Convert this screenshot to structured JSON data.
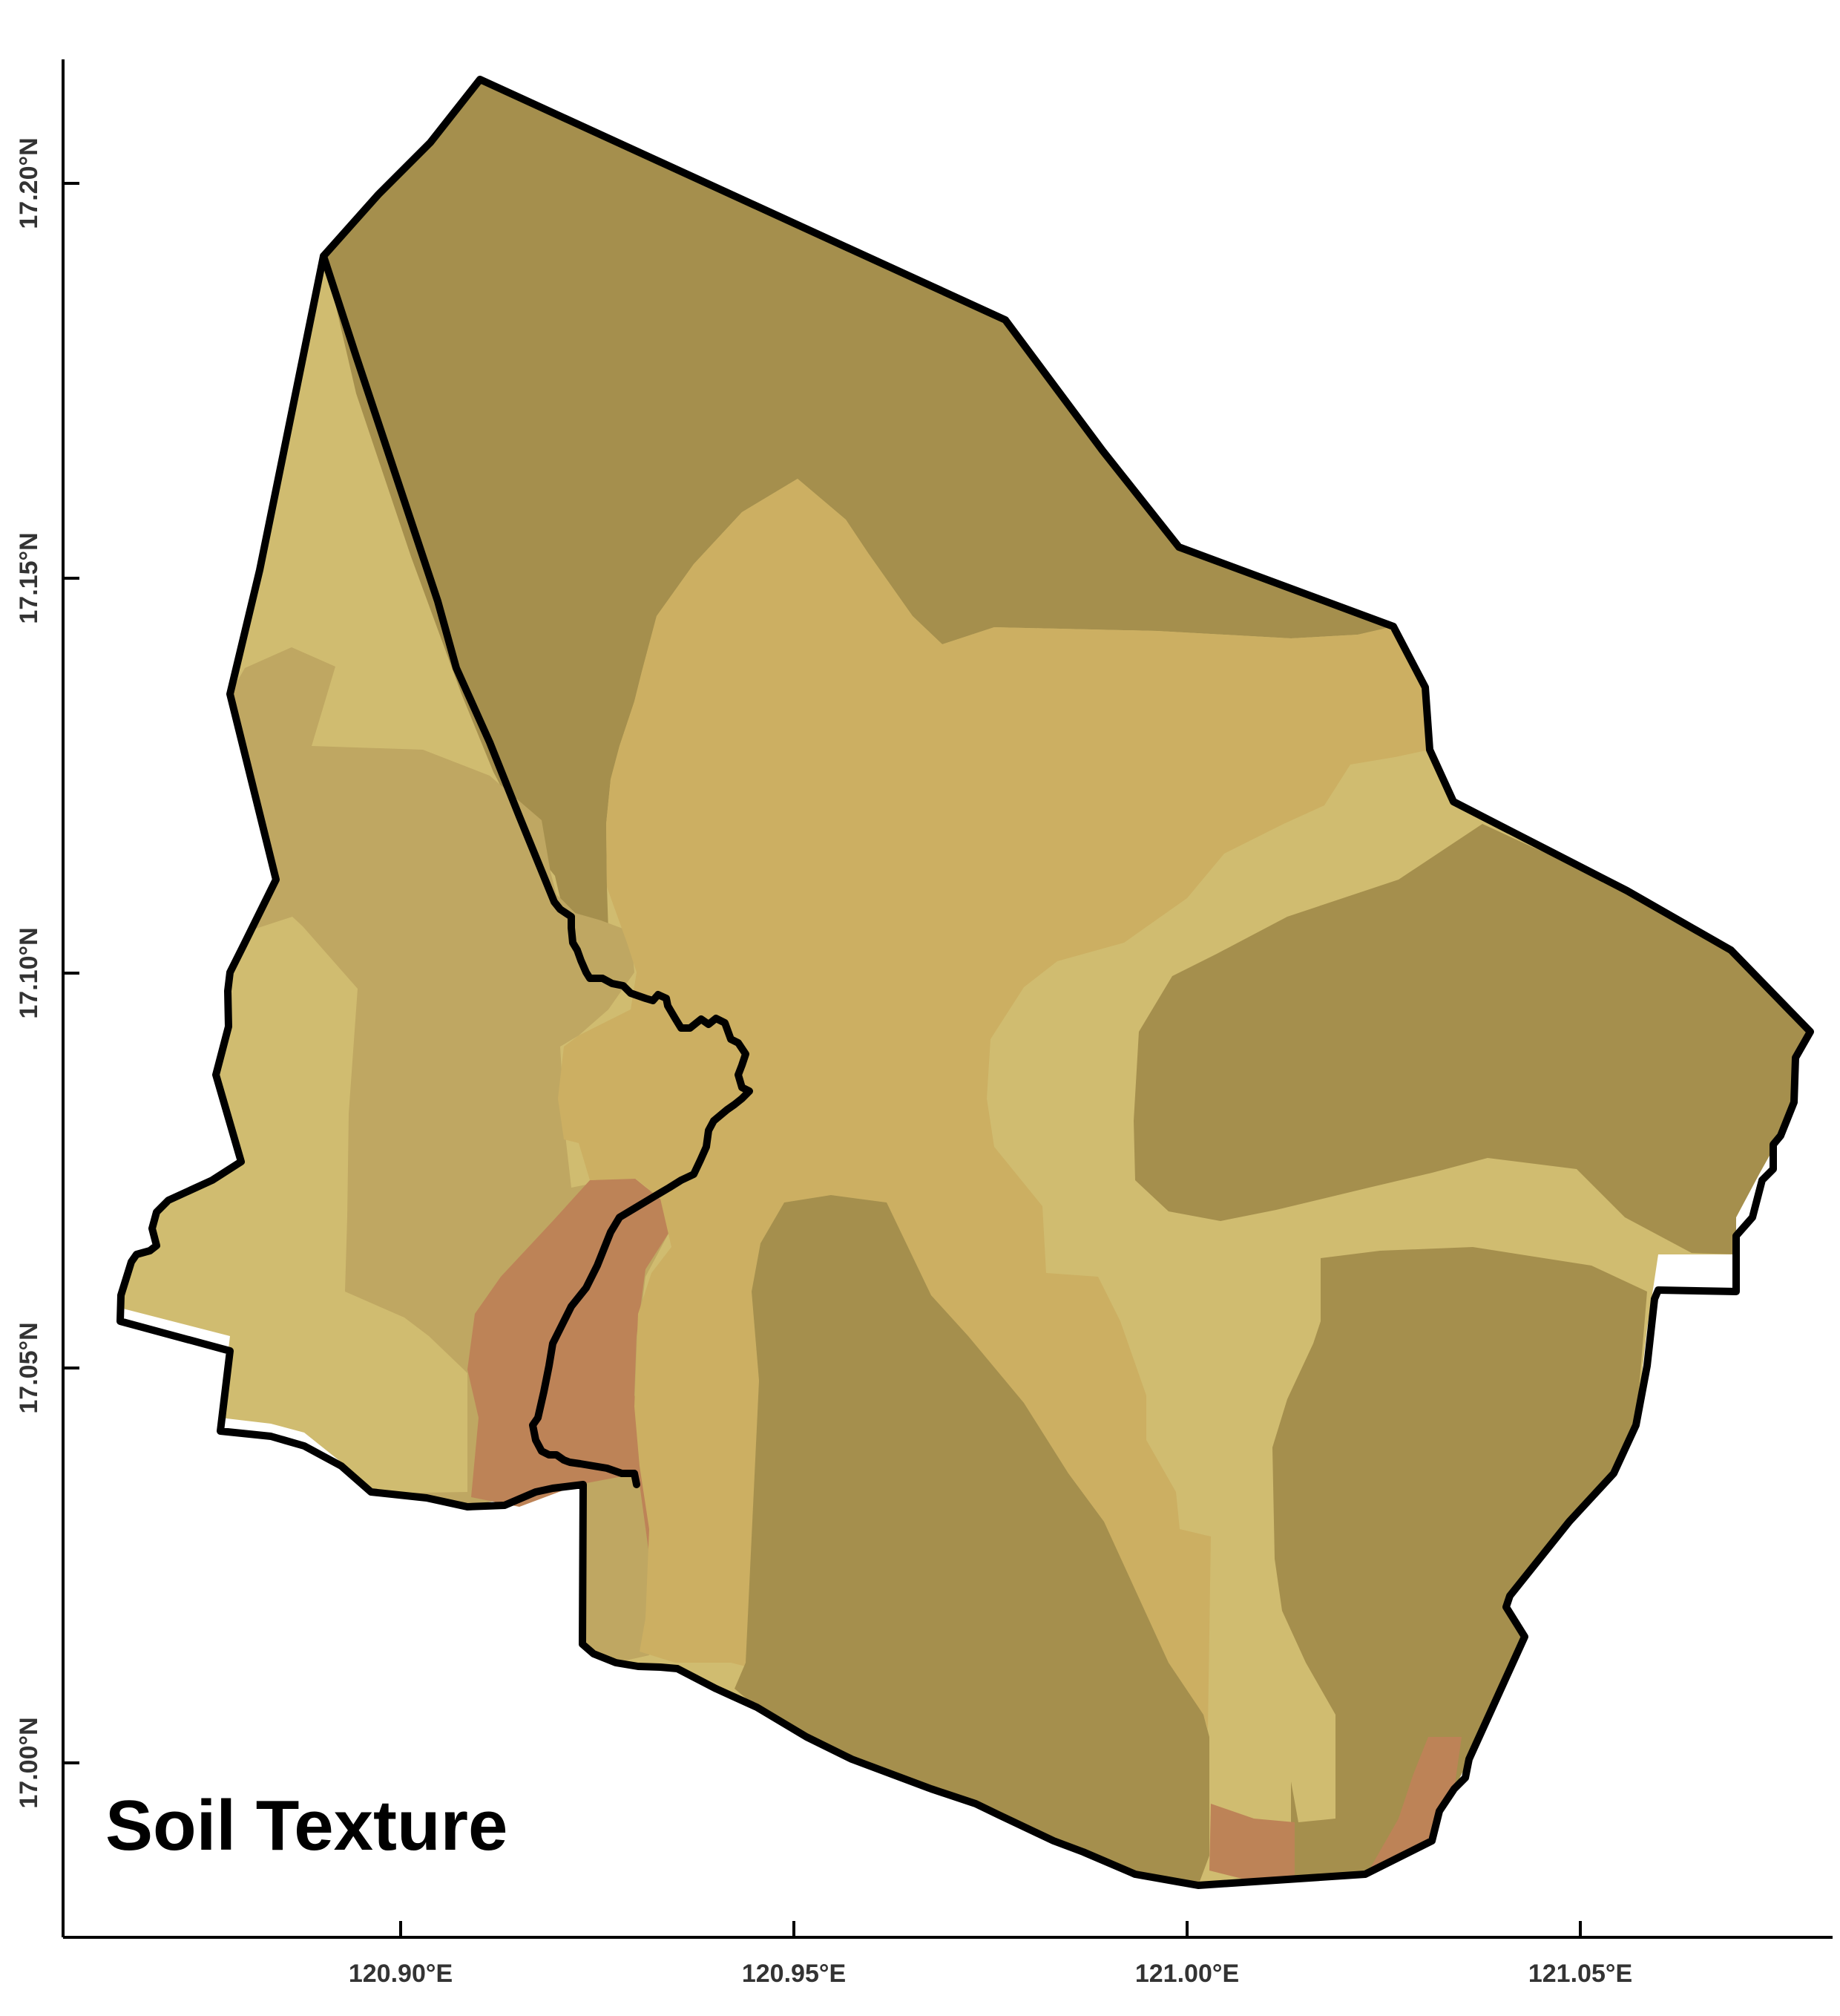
{
  "title": "Soil Texture",
  "map": {
    "x_axis": {
      "ticks": [
        {
          "label": "120.90°E",
          "value": 120.9
        },
        {
          "label": "120.95°E",
          "value": 120.95
        },
        {
          "label": "121.00°E",
          "value": 121.0
        },
        {
          "label": "121.05°E",
          "value": 121.05
        }
      ],
      "range": [
        120.857,
        121.082
      ]
    },
    "y_axis": {
      "ticks": [
        {
          "label": "17.20°N",
          "value": 17.2
        },
        {
          "label": "17.15°N",
          "value": 17.15
        },
        {
          "label": "17.10°N",
          "value": 17.1
        },
        {
          "label": "17.05°N",
          "value": 17.05
        },
        {
          "label": "17.00°N",
          "value": 17.0
        }
      ],
      "range": [
        16.978,
        17.215
      ]
    },
    "soil_classes": [
      {
        "key": "dark",
        "color": "#a58f4d"
      },
      {
        "key": "medium",
        "color": "#bfa762"
      },
      {
        "key": "tan",
        "color": "#ccaf62"
      },
      {
        "key": "light",
        "color": "#d0bc70"
      },
      {
        "key": "clay",
        "color": "#bd8357"
      }
    ],
    "boundary_color": "#000000"
  }
}
